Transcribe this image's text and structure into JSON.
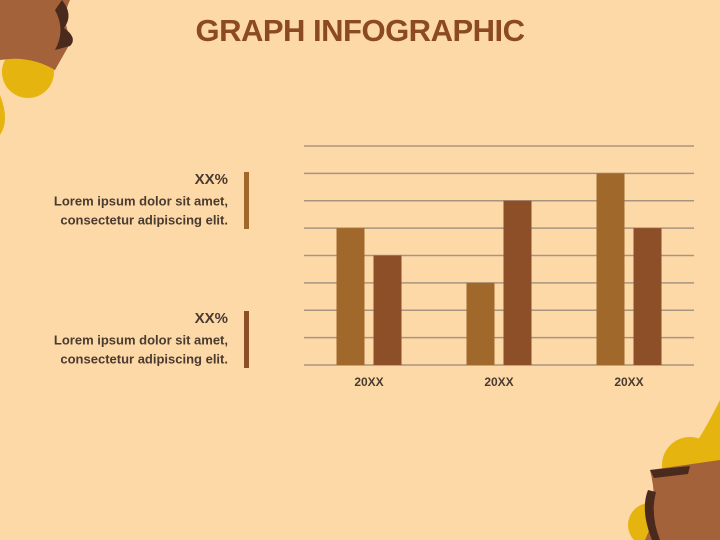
{
  "title": "GRAPH INFOGRAPHIC",
  "text_blocks": [
    {
      "value": "XX%",
      "lines": [
        "Lorem ipsum dolor sit amet,",
        "consectetur adipiscing elit."
      ],
      "color": "#a0692b"
    },
    {
      "value": "XX%",
      "lines": [
        "Lorem ipsum dolor sit amet,",
        "consectetur adipiscing elit."
      ],
      "color": "#8c4f28"
    }
  ],
  "chart_data": {
    "type": "bar",
    "categories": [
      "20XX",
      "20XX",
      "20XX"
    ],
    "series": [
      {
        "color": "#a0692b",
        "values": [
          5,
          3,
          7
        ]
      },
      {
        "color": "#8c4f28",
        "values": [
          4,
          6,
          5
        ]
      }
    ],
    "ylim": [
      0,
      8
    ],
    "yticks": [
      0,
      1,
      2,
      3,
      4,
      5,
      6,
      7,
      8
    ],
    "grid": true
  }
}
